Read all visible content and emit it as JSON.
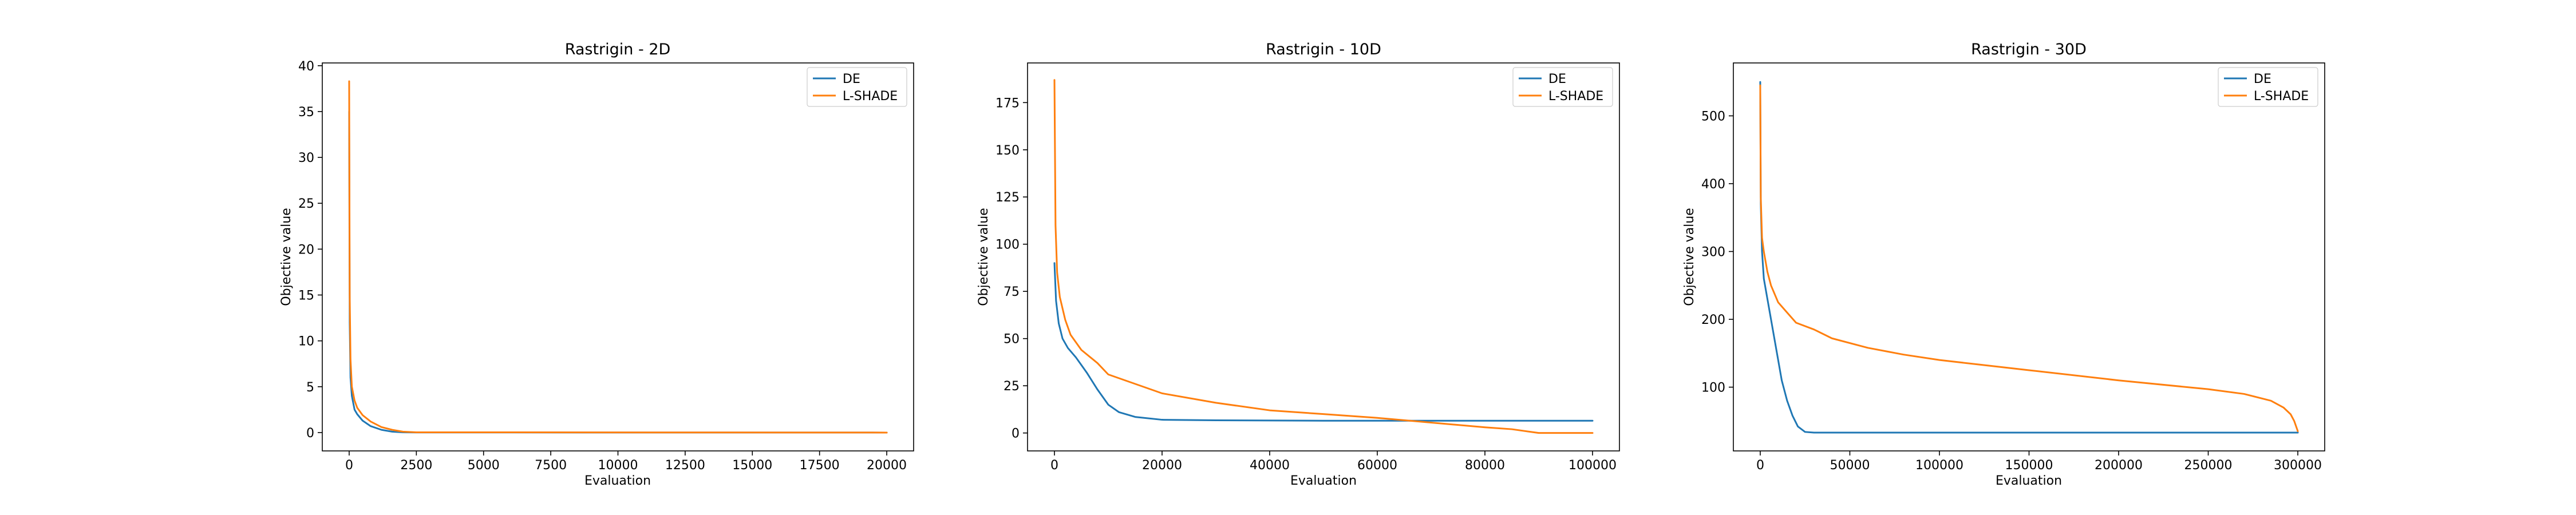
{
  "colors": {
    "DE": "#1f77b4",
    "L-SHADE": "#ff7f0e"
  },
  "chart_data": [
    {
      "type": "line",
      "title": "Rastrigin - 2D",
      "xlabel": "Evaluation",
      "ylabel": "Objective value",
      "xlim": [
        -1000,
        21000
      ],
      "ylim": [
        -2,
        40.3
      ],
      "xticks": [
        0,
        2500,
        5000,
        7500,
        10000,
        12500,
        15000,
        17500,
        20000
      ],
      "yticks": [
        0,
        5,
        10,
        15,
        20,
        25,
        30,
        35,
        40
      ],
      "legend": "top-right",
      "series": [
        {
          "name": "DE",
          "x": [
            0,
            20,
            50,
            100,
            200,
            300,
            500,
            800,
            1200,
            1600,
            2000,
            2500,
            20000
          ],
          "y": [
            35,
            12,
            6,
            4,
            2.5,
            2,
            1.3,
            0.7,
            0.3,
            0.1,
            0.03,
            0.01,
            0.0
          ]
        },
        {
          "name": "L-SHADE",
          "x": [
            0,
            20,
            50,
            100,
            200,
            300,
            500,
            800,
            1200,
            1600,
            2000,
            2500,
            20000
          ],
          "y": [
            38.3,
            15,
            8,
            5,
            3.5,
            2.7,
            1.9,
            1.2,
            0.6,
            0.3,
            0.1,
            0.03,
            0.0
          ]
        }
      ]
    },
    {
      "type": "line",
      "title": "Rastrigin - 10D",
      "xlabel": "Evaluation",
      "ylabel": "Objective value",
      "xlim": [
        -5000,
        105000
      ],
      "ylim": [
        -9.5,
        196
      ],
      "xticks": [
        0,
        20000,
        40000,
        60000,
        80000,
        100000
      ],
      "yticks": [
        0,
        25,
        50,
        75,
        100,
        125,
        150,
        175
      ],
      "legend": "top-right",
      "series": [
        {
          "name": "DE",
          "x": [
            0,
            300,
            800,
            1500,
            2500,
            4000,
            6000,
            8000,
            10000,
            12000,
            15000,
            20000,
            30000,
            50000,
            100000
          ],
          "y": [
            90,
            70,
            58,
            50,
            45,
            40,
            32,
            23,
            15,
            11,
            8.5,
            7,
            6.7,
            6.5,
            6.5
          ]
        },
        {
          "name": "L-SHADE",
          "x": [
            0,
            200,
            500,
            1000,
            2000,
            3000,
            5000,
            8000,
            10000,
            15000,
            20000,
            30000,
            40000,
            50000,
            60000,
            70000,
            80000,
            85000,
            90000,
            100000
          ],
          "y": [
            187,
            110,
            85,
            72,
            60,
            52,
            44,
            37,
            31,
            26,
            21,
            16,
            12,
            10,
            8,
            5.5,
            3,
            2,
            0,
            0
          ]
        }
      ]
    },
    {
      "type": "line",
      "title": "Rastrigin - 30D",
      "xlabel": "Evaluation",
      "ylabel": "Objective value",
      "xlim": [
        -15000,
        315000
      ],
      "ylim": [
        6,
        578
      ],
      "xticks": [
        0,
        50000,
        100000,
        150000,
        200000,
        250000,
        300000
      ],
      "yticks": [
        100,
        200,
        300,
        400,
        500
      ],
      "legend": "top-right",
      "series": [
        {
          "name": "DE",
          "x": [
            0,
            300,
            1000,
            2000,
            4000,
            6000,
            8000,
            10000,
            12000,
            15000,
            18000,
            21000,
            25000,
            30000,
            300000
          ],
          "y": [
            550,
            370,
            300,
            260,
            230,
            200,
            170,
            140,
            110,
            80,
            58,
            42,
            34,
            33,
            33
          ]
        },
        {
          "name": "L-SHADE",
          "x": [
            0,
            300,
            1000,
            2000,
            4000,
            6000,
            10000,
            15000,
            20000,
            30000,
            40000,
            60000,
            80000,
            100000,
            150000,
            200000,
            250000,
            270000,
            285000,
            292000,
            296000,
            298000,
            300000
          ],
          "y": [
            545,
            380,
            320,
            300,
            270,
            250,
            225,
            210,
            195,
            185,
            172,
            158,
            148,
            140,
            125,
            110,
            97,
            90,
            80,
            70,
            60,
            50,
            35
          ]
        }
      ]
    }
  ]
}
